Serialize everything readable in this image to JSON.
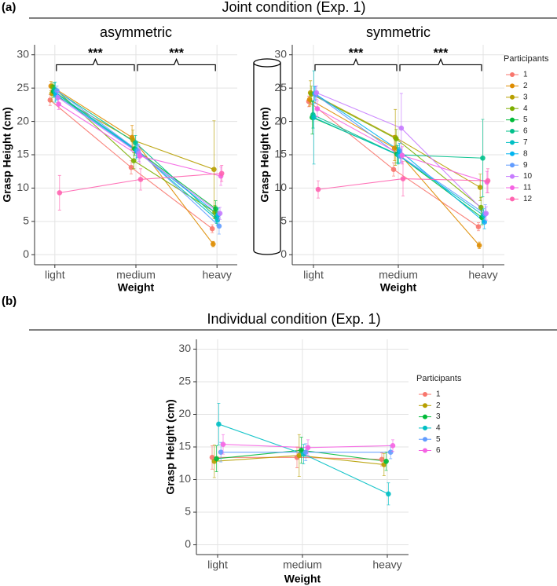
{
  "panels": [
    {
      "label": "(a)",
      "title": "Joint condition (Exp. 1)"
    },
    {
      "label": "(b)",
      "title": "Individual condition (Exp. 1)"
    }
  ],
  "chart_data": [
    {
      "type": "line",
      "title": "asymmetric",
      "x_label": "Weight",
      "y_label": "Grasp Height (cm)",
      "categories": [
        "light",
        "medium",
        "heavy"
      ],
      "ylim": [
        -1.5,
        31.5
      ],
      "yticks": [
        0,
        5,
        10,
        15,
        20,
        25,
        30
      ],
      "grid": true,
      "annotations": [
        "***",
        "***"
      ],
      "series": [
        {
          "color": "#F8766D",
          "values": [
            23.2,
            13.1,
            3.9
          ],
          "errors": [
            0.8,
            1.0,
            0.6
          ]
        },
        {
          "color": "#DE8C00",
          "values": [
            25.3,
            17.6,
            1.6
          ],
          "errors": [
            0.7,
            1.8,
            0.4
          ]
        },
        {
          "color": "#B79F00",
          "values": [
            24.2,
            17.2,
            12.8
          ],
          "errors": [
            1.2,
            1.5,
            7.3
          ]
        },
        {
          "color": "#7CAE00",
          "values": [
            25.2,
            14.1,
            6.4
          ],
          "errors": [
            0.6,
            1.2,
            1.0
          ]
        },
        {
          "color": "#00BA38",
          "values": [
            24.5,
            15.9,
            6.9
          ],
          "errors": [
            0.9,
            1.0,
            1.2
          ]
        },
        {
          "color": "#00C08B",
          "values": [
            24.8,
            16.8,
            5.6
          ],
          "errors": [
            1.0,
            1.1,
            0.9
          ]
        },
        {
          "color": "#00BFC4",
          "values": [
            24.4,
            15.7,
            5.2
          ],
          "errors": [
            1.5,
            1.3,
            0.8
          ]
        },
        {
          "color": "#00B4F0",
          "values": [
            24.0,
            15.5,
            6.0
          ],
          "errors": [
            0.8,
            0.9,
            1.0
          ]
        },
        {
          "color": "#619CFF",
          "values": [
            24.6,
            15.6,
            4.3
          ],
          "errors": [
            0.7,
            1.0,
            1.2
          ]
        },
        {
          "color": "#C77CFF",
          "values": [
            23.6,
            15.2,
            6.2
          ],
          "errors": [
            0.9,
            1.2,
            0.9
          ]
        },
        {
          "color": "#F564E3",
          "values": [
            22.6,
            14.8,
            11.8
          ],
          "errors": [
            0.8,
            1.1,
            1.4
          ]
        },
        {
          "color": "#FF64B0",
          "values": [
            9.3,
            11.3,
            12.2
          ],
          "errors": [
            2.6,
            1.6,
            1.2
          ]
        }
      ]
    },
    {
      "type": "line",
      "title": "symmetric",
      "x_label": "Weight",
      "y_label": "Grasp Height (cm)",
      "categories": [
        "light",
        "medium",
        "heavy"
      ],
      "ylim": [
        -1.5,
        31.5
      ],
      "yticks": [
        0,
        5,
        10,
        15,
        20,
        25,
        30
      ],
      "grid": true,
      "annotations": [
        "***",
        "***"
      ],
      "legend_title": "Participants",
      "series": [
        {
          "name": "1",
          "color": "#F8766D",
          "values": [
            23.0,
            12.8,
            4.2
          ],
          "errors": [
            0.8,
            1.0,
            0.6
          ]
        },
        {
          "name": "2",
          "color": "#DE8C00",
          "values": [
            23.3,
            16.0,
            1.4
          ],
          "errors": [
            1.0,
            1.9,
            0.5
          ]
        },
        {
          "name": "3",
          "color": "#B79F00",
          "values": [
            24.3,
            17.6,
            10.1
          ],
          "errors": [
            1.8,
            4.2,
            2.0
          ]
        },
        {
          "name": "4",
          "color": "#7CAE00",
          "values": [
            24.1,
            17.4,
            7.1
          ],
          "errors": [
            1.2,
            1.4,
            1.5
          ]
        },
        {
          "name": "5",
          "color": "#00BA38",
          "values": [
            20.6,
            15.1,
            5.6
          ],
          "errors": [
            2.5,
            1.3,
            1.1
          ]
        },
        {
          "name": "6",
          "color": "#00C08B",
          "values": [
            21.0,
            15.0,
            14.5
          ],
          "errors": [
            2.0,
            1.4,
            5.8
          ]
        },
        {
          "name": "7",
          "color": "#00BFC4",
          "values": [
            20.6,
            14.9,
            5.9
          ],
          "errors": [
            7.0,
            1.2,
            1.0
          ]
        },
        {
          "name": "8",
          "color": "#00B4F0",
          "values": [
            24.2,
            15.6,
            4.9
          ],
          "errors": [
            1.0,
            1.1,
            1.0
          ]
        },
        {
          "name": "9",
          "color": "#619CFF",
          "values": [
            24.0,
            14.8,
            6.1
          ],
          "errors": [
            1.3,
            1.0,
            1.4
          ]
        },
        {
          "name": "10",
          "color": "#C77CFF",
          "values": [
            24.3,
            19.0,
            6.2
          ],
          "errors": [
            1.0,
            5.2,
            1.0
          ]
        },
        {
          "name": "11",
          "color": "#F564E3",
          "values": [
            21.9,
            14.9,
            10.9
          ],
          "errors": [
            1.2,
            1.3,
            1.6
          ]
        },
        {
          "name": "12",
          "color": "#FF64B0",
          "values": [
            9.8,
            11.4,
            11.1
          ],
          "errors": [
            1.3,
            2.6,
            1.8
          ]
        }
      ]
    },
    {
      "type": "line",
      "x_label": "Weight",
      "y_label": "Grasp Height (cm)",
      "categories": [
        "light",
        "medium",
        "heavy"
      ],
      "ylim": [
        -1.5,
        31.5
      ],
      "yticks": [
        0,
        5,
        10,
        15,
        20,
        25,
        30
      ],
      "grid": true,
      "legend_title": "Participants",
      "series": [
        {
          "name": "1",
          "color": "#F8766D",
          "values": [
            13.4,
            13.4,
            13.1
          ],
          "errors": [
            1.8,
            1.6,
            1.0
          ]
        },
        {
          "name": "2",
          "color": "#B79F00",
          "values": [
            12.8,
            13.7,
            12.3
          ],
          "errors": [
            2.5,
            3.2,
            1.7
          ]
        },
        {
          "name": "3",
          "color": "#00BA38",
          "values": [
            13.2,
            14.5,
            12.8
          ],
          "errors": [
            2.0,
            2.0,
            1.4
          ]
        },
        {
          "name": "4",
          "color": "#00BFC4",
          "values": [
            18.5,
            13.9,
            7.8
          ],
          "errors": [
            3.2,
            1.5,
            1.7
          ]
        },
        {
          "name": "5",
          "color": "#619CFF",
          "values": [
            14.2,
            14.2,
            14.2
          ],
          "errors": [
            1.5,
            1.3,
            1.0
          ]
        },
        {
          "name": "6",
          "color": "#F564E3",
          "values": [
            15.4,
            14.9,
            15.2
          ],
          "errors": [
            1.5,
            1.2,
            0.9
          ]
        }
      ]
    }
  ]
}
